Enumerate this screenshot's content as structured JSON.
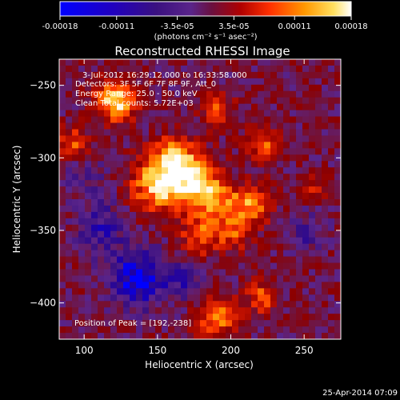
{
  "colorbar": {
    "tick_labels": [
      "-0.00018",
      "-0.00011",
      "-3.5e-05",
      "3.5e-05",
      "0.00011",
      "0.00018"
    ],
    "tick_values": [
      -0.00018,
      -0.00011,
      -3.5e-05,
      3.5e-05,
      0.00011,
      0.00018
    ],
    "range": [
      -0.00018,
      0.00018
    ],
    "unit_label": "(photons cm⁻² s⁻¹ asec⁻²)"
  },
  "chart_data": {
    "type": "heatmap",
    "title": "Reconstructed RHESSI Image",
    "xlabel": "Heliocentric X (arcsec)",
    "ylabel": "Heliocentric Y (arcsec)",
    "xlim": [
      83,
      275
    ],
    "ylim": [
      -425,
      -232
    ],
    "x_ticks": [
      100,
      150,
      200,
      250
    ],
    "y_ticks": [
      -250,
      -300,
      -350,
      -400
    ],
    "grid": false,
    "peak_position": [
      192,
      -238
    ],
    "colormap_stops": [
      "#0000ff",
      "#1c00a8",
      "#3a1080",
      "#5a248a",
      "#701440",
      "#8c0000",
      "#c01000",
      "#ff3800",
      "#ff9000",
      "#ffd040",
      "#ffffff"
    ],
    "annotations": [
      "3-Jul-2012 16:29:12.000 to 16:33:58.000",
      "Detectors: 3F 5F 6F 7F 8F 9F, Att_0",
      "Energy Range: 25.0 - 50.0 keV",
      "Clean  Total counts: 5.72E+03",
      "Position of Peak = [192,-238]"
    ]
  },
  "footer": {
    "date": "25-Apr-2014 07:09"
  }
}
